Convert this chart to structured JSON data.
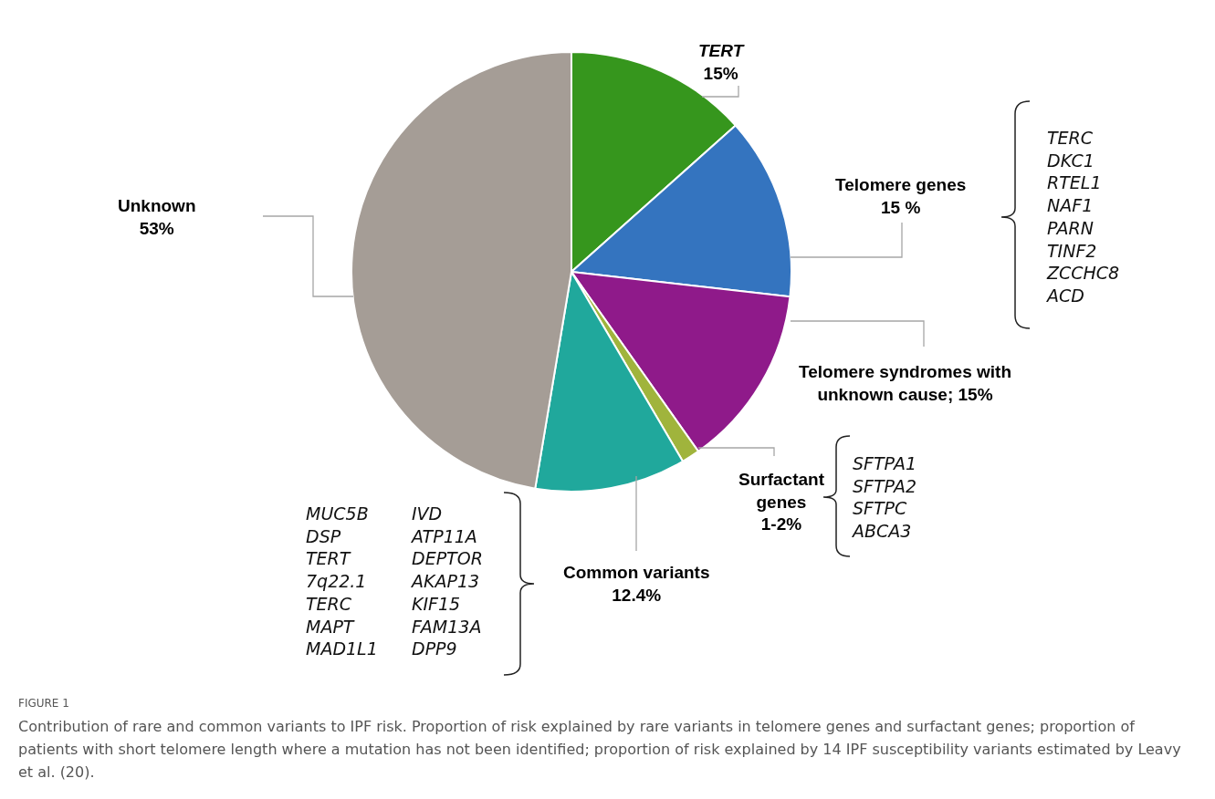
{
  "chart_data": {
    "type": "pie",
    "categories": [
      "TERT",
      "Telomere genes",
      "Telomere syndromes with unknown cause",
      "Surfactant genes",
      "Common variants",
      "Unknown"
    ],
    "values": [
      15,
      15,
      15,
      1.5,
      12.4,
      53
    ],
    "value_labels": [
      "15%",
      "15 %",
      "15%",
      "1-2%",
      "12.4%",
      "53%"
    ],
    "colors": [
      "#36961d",
      "#3474bf",
      "#8f1a8a",
      "#a0b43c",
      "#20a89c",
      "#a59d96"
    ],
    "legend": false,
    "annotations": [
      "TERC\nDKC1\nRTEL1\nNAF1\nPARN\nTINF2\nZCCHC8\nACD",
      "SFTPA1\nSFTPA2\nSFTPC\nABCA3",
      "MUC5B\nDSP\nTERT\n7q22.1\nTERC\nMAPT\nMAD1L1",
      "IVD\nATP11A\nDEPTOR\nAKAP13\nKIF15\nFAM13A\nDPP9",
      "FIGURE 1",
      "Contribution of rare and common variants to IPF risk. Proportion of risk explained by rare variants in telomere genes and surfactant genes; proportion of patients with short telomere length where a mutation has not been identified; proportion of risk explained by 14 IPF susceptibility variants estimated by Leavy et al. (20)."
    ]
  }
}
